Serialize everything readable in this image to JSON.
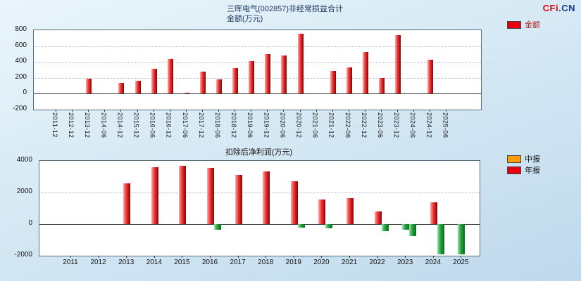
{
  "page": {
    "logo": {
      "part1": "CFi",
      "part2": ".CN"
    }
  },
  "chart_data": [
    {
      "type": "bar",
      "title": "三晖电气(002857)非经常损益合计",
      "subtitle": "金额(万元)",
      "xlabel": "",
      "ylabel": "",
      "legend": [
        {
          "label": "金额",
          "color": "#e60012"
        }
      ],
      "legend_position": "top-right",
      "grid": true,
      "ylim": [
        -200,
        800
      ],
      "yticks": [
        800,
        600,
        400,
        200,
        0,
        -200
      ],
      "categories": [
        "2011-12",
        "2012-12",
        "2013-12",
        "2014-06",
        "2014-12",
        "2015-12",
        "2016-06",
        "2016-12",
        "2017-06",
        "2017-12",
        "2018-06",
        "2018-12",
        "2019-06",
        "2019-12",
        "2020-06",
        "2020-12",
        "2021-06",
        "2021-12",
        "2022-06",
        "2022-12",
        "2023-06",
        "2023-12",
        "2024-06",
        "2024-12",
        "2025-06"
      ],
      "values": [
        null,
        null,
        190,
        null,
        140,
        160,
        310,
        440,
        15,
        280,
        180,
        320,
        410,
        500,
        480,
        760,
        null,
        290,
        330,
        530,
        200,
        740,
        null,
        430,
        null
      ],
      "bar_color_positive": "#e60012",
      "bar_color_negative": "#21a038"
    },
    {
      "type": "bar",
      "title": "扣除后净利润(万元)",
      "xlabel": "",
      "ylabel": "",
      "legend": [
        {
          "label": "中报",
          "color": "#ff9c00"
        },
        {
          "label": "年报",
          "color": "#e60012"
        }
      ],
      "legend_position": "top-right",
      "grid": true,
      "ylim": [
        -2000,
        4000
      ],
      "yticks": [
        4000,
        2000,
        0,
        -2000
      ],
      "categories": [
        "2011",
        "2012",
        "2013",
        "2014",
        "2015",
        "2016",
        "2017",
        "2018",
        "2019",
        "2020",
        "2021",
        "2022",
        "2023",
        "2024",
        "2025"
      ],
      "series": [
        {
          "name": "年报",
          "values": [
            null,
            null,
            2600,
            3600,
            3700,
            3550,
            3100,
            3350,
            2700,
            1550,
            1650,
            800,
            -350,
            1400,
            -1900
          ]
        },
        {
          "name": "中报",
          "values": [
            null,
            null,
            null,
            null,
            null,
            -350,
            null,
            null,
            -200,
            -250,
            null,
            -450,
            -750,
            -1900,
            null
          ]
        }
      ],
      "bar_color_positive": "#e60012",
      "bar_color_negative": "#21a038"
    }
  ]
}
